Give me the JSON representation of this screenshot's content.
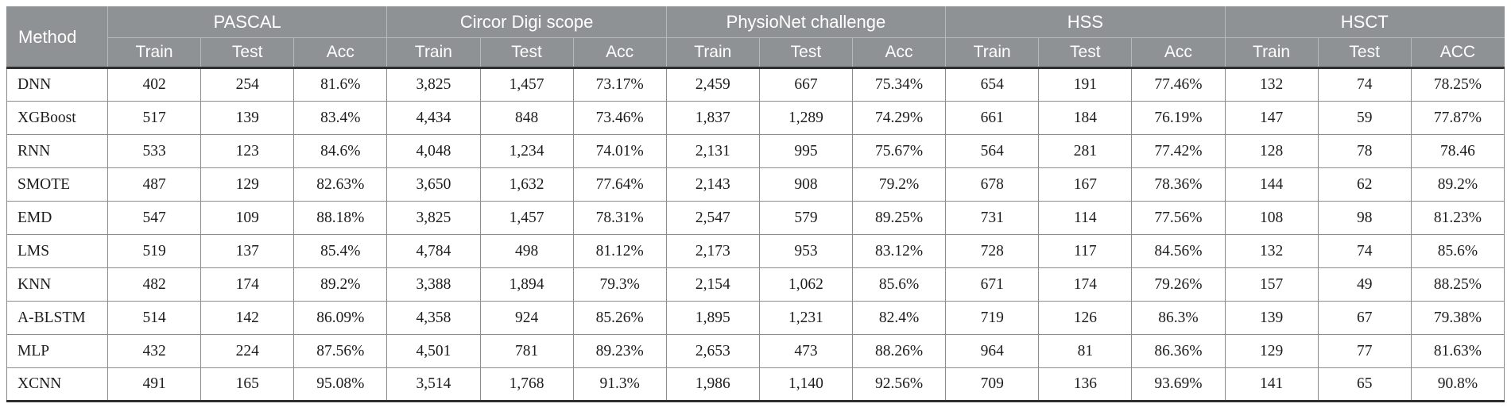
{
  "colors": {
    "header_bg": "#8f9294",
    "header_text": "#ffffff",
    "header_grid": "#b7babc",
    "body_grid": "#8c8c8c",
    "body_text": "#1d1d1d",
    "heavy_rule": "#2e2e2e"
  },
  "table": {
    "method_header": "Method",
    "groups": [
      {
        "label": "PASCAL",
        "subcols": [
          "Train",
          "Test",
          "Acc"
        ]
      },
      {
        "label": "Circor Digi scope",
        "subcols": [
          "Train",
          "Test",
          "Acc"
        ]
      },
      {
        "label": "PhysioNet challenge",
        "subcols": [
          "Train",
          "Test",
          "Acc"
        ]
      },
      {
        "label": "HSS",
        "subcols": [
          "Train",
          "Test",
          "Acc"
        ]
      },
      {
        "label": "HSCT",
        "subcols": [
          "Train",
          "Test",
          "ACC"
        ]
      }
    ],
    "rows": [
      {
        "method": "DNN",
        "values": [
          "402",
          "254",
          "81.6%",
          "3,825",
          "1,457",
          "73.17%",
          "2,459",
          "667",
          "75.34%",
          "654",
          "191",
          "77.46%",
          "132",
          "74",
          "78.25%"
        ]
      },
      {
        "method": "XGBoost",
        "values": [
          "517",
          "139",
          "83.4%",
          "4,434",
          "848",
          "73.46%",
          "1,837",
          "1,289",
          "74.29%",
          "661",
          "184",
          "76.19%",
          "147",
          "59",
          "77.87%"
        ]
      },
      {
        "method": "RNN",
        "values": [
          "533",
          "123",
          "84.6%",
          "4,048",
          "1,234",
          "74.01%",
          "2,131",
          "995",
          "75.67%",
          "564",
          "281",
          "77.42%",
          "128",
          "78",
          "78.46"
        ]
      },
      {
        "method": "SMOTE",
        "values": [
          "487",
          "129",
          "82.63%",
          "3,650",
          "1,632",
          "77.64%",
          "2,143",
          "908",
          "79.2%",
          "678",
          "167",
          "78.36%",
          "144",
          "62",
          "89.2%"
        ]
      },
      {
        "method": "EMD",
        "values": [
          "547",
          "109",
          "88.18%",
          "3,825",
          "1,457",
          "78.31%",
          "2,547",
          "579",
          "89.25%",
          "731",
          "114",
          "77.56%",
          "108",
          "98",
          "81.23%"
        ]
      },
      {
        "method": "LMS",
        "values": [
          "519",
          "137",
          "85.4%",
          "4,784",
          "498",
          "81.12%",
          "2,173",
          "953",
          "83.12%",
          "728",
          "117",
          "84.56%",
          "132",
          "74",
          "85.6%"
        ]
      },
      {
        "method": "KNN",
        "values": [
          "482",
          "174",
          "89.2%",
          "3,388",
          "1,894",
          "79.3%",
          "2,154",
          "1,062",
          "85.6%",
          "671",
          "174",
          "79.26%",
          "157",
          "49",
          "88.25%"
        ]
      },
      {
        "method": "A-BLSTM",
        "values": [
          "514",
          "142",
          "86.09%",
          "4,358",
          "924",
          "85.26%",
          "1,895",
          "1,231",
          "82.4%",
          "719",
          "126",
          "86.3%",
          "139",
          "67",
          "79.38%"
        ]
      },
      {
        "method": "MLP",
        "values": [
          "432",
          "224",
          "87.56%",
          "4,501",
          "781",
          "89.23%",
          "2,653",
          "473",
          "88.26%",
          "964",
          "81",
          "86.36%",
          "129",
          "77",
          "81.63%"
        ]
      },
      {
        "method": "XCNN",
        "values": [
          "491",
          "165",
          "95.08%",
          "3,514",
          "1,768",
          "91.3%",
          "1,986",
          "1,140",
          "92.56%",
          "709",
          "136",
          "93.69%",
          "141",
          "65",
          "90.8%"
        ]
      }
    ]
  }
}
